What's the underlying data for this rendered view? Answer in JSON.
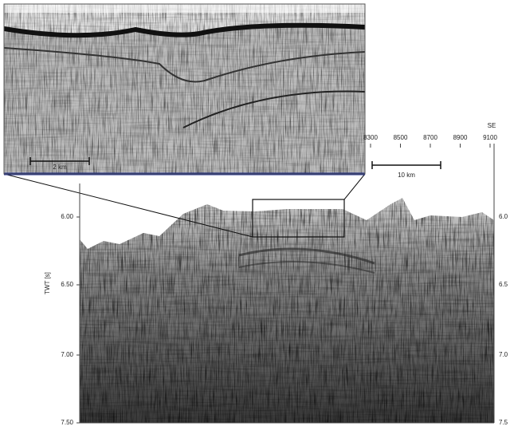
{
  "top_axis": {
    "label": "SE",
    "ticks": [
      "8300",
      "8500",
      "8700",
      "8900",
      "9100"
    ]
  },
  "left_axis": {
    "label": "TWT [s]",
    "ticks": [
      "6.00",
      "6.50",
      "7.00",
      "7.50"
    ]
  },
  "right_axis": {
    "ticks": [
      "6.0",
      "6.5",
      "7.0",
      "7.5"
    ]
  },
  "scale_bars": {
    "main": "10 km",
    "inset": "2 km"
  }
}
